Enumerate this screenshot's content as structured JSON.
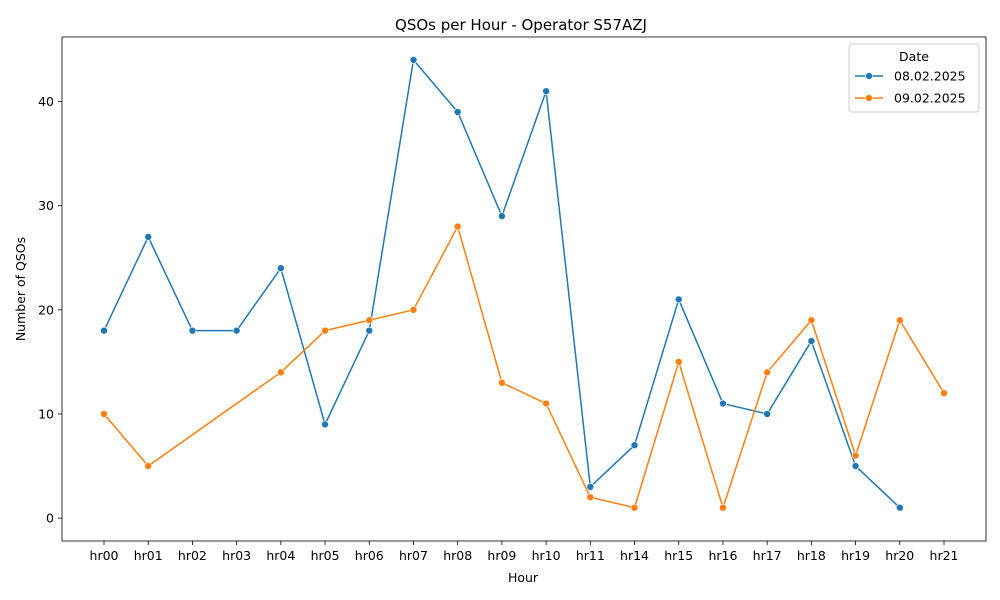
{
  "chart_data": {
    "type": "line",
    "title": "QSOs per Hour - Operator S57AZJ",
    "xlabel": "Hour",
    "ylabel": "Number of QSOs",
    "categories": [
      "hr00",
      "hr01",
      "hr02",
      "hr03",
      "hr04",
      "hr05",
      "hr06",
      "hr07",
      "hr08",
      "hr09",
      "hr10",
      "hr11",
      "hr14",
      "hr15",
      "hr16",
      "hr17",
      "hr18",
      "hr19",
      "hr20",
      "hr21"
    ],
    "ylim": [
      -2.2,
      46.2
    ],
    "yticks": [
      0,
      10,
      20,
      30,
      40
    ],
    "legend_title": "Date",
    "legend_position": "top-right",
    "grid": false,
    "series": [
      {
        "name": "08.02.2025",
        "color": "#1f77b4",
        "values": [
          18,
          27,
          18,
          18,
          24,
          9,
          18,
          44,
          39,
          29,
          41,
          3,
          7,
          21,
          11,
          10,
          17,
          5,
          1,
          null
        ]
      },
      {
        "name": "09.02.2025",
        "color": "#ff7f0e",
        "values": [
          10,
          5,
          null,
          null,
          14,
          18,
          19,
          20,
          28,
          13,
          11,
          2,
          1,
          15,
          1,
          14,
          19,
          6,
          19,
          12
        ]
      }
    ]
  }
}
